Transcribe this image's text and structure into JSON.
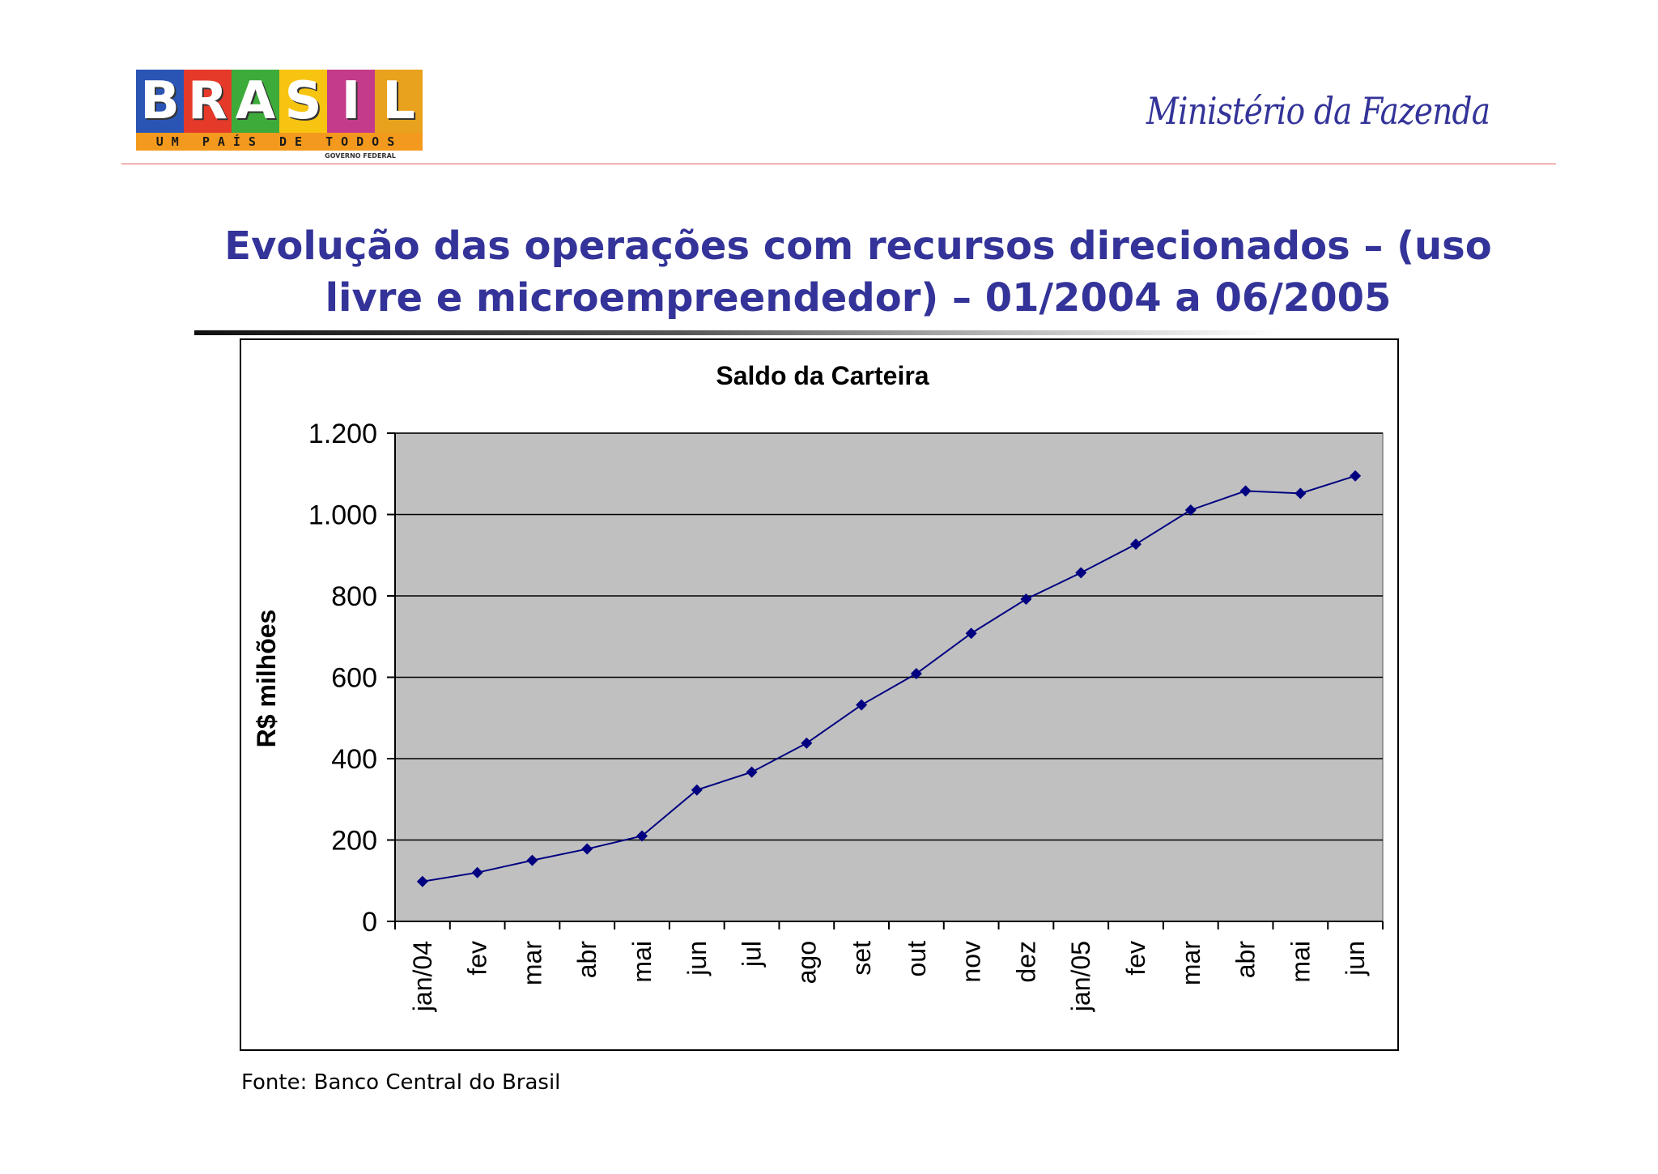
{
  "header": {
    "logo": {
      "letters": [
        "B",
        "R",
        "A",
        "S",
        "I",
        "L"
      ],
      "letter_colors": [
        "#2a55b5",
        "#e53a2a",
        "#3cab3a",
        "#f7c411",
        "#c43b8c",
        "#e8a21d"
      ],
      "tagline": "UM PAÍS DE TODOS",
      "subtext": "GOVERNO FEDERAL"
    },
    "ministry": "Ministério da Fazenda"
  },
  "title_lines": [
    "Evolução das operações com recursos direcionados – (uso",
    "livre e microempreendedor) – 01/2004 a 06/2005"
  ],
  "source": "Fonte: Banco Central do Brasil",
  "chart_data": {
    "type": "line",
    "title": "Saldo da Carteira",
    "ylabel": "R$ milhões",
    "xlabel": "",
    "categories": [
      "jan/04",
      "fev",
      "mar",
      "abr",
      "mai",
      "jun",
      "jul",
      "ago",
      "set",
      "out",
      "nov",
      "dez",
      "jan/05",
      "fev",
      "mar",
      "abr",
      "mai",
      "jun"
    ],
    "series": [
      {
        "values": [
          98,
          120,
          150,
          178,
          210,
          323,
          367,
          438,
          532,
          609,
          708,
          792,
          857,
          927,
          1011,
          1058,
          1052,
          1095
        ]
      }
    ],
    "ylim": [
      0,
      1200
    ],
    "yticks": [
      0,
      200,
      400,
      600,
      800,
      1000,
      1200
    ],
    "ytick_labels": [
      "0",
      "200",
      "400",
      "600",
      "800",
      "1.000",
      "1.200"
    ],
    "grid": true,
    "plot_background": "#c0c0c0",
    "line_color": "#000080",
    "marker": "diamond"
  }
}
